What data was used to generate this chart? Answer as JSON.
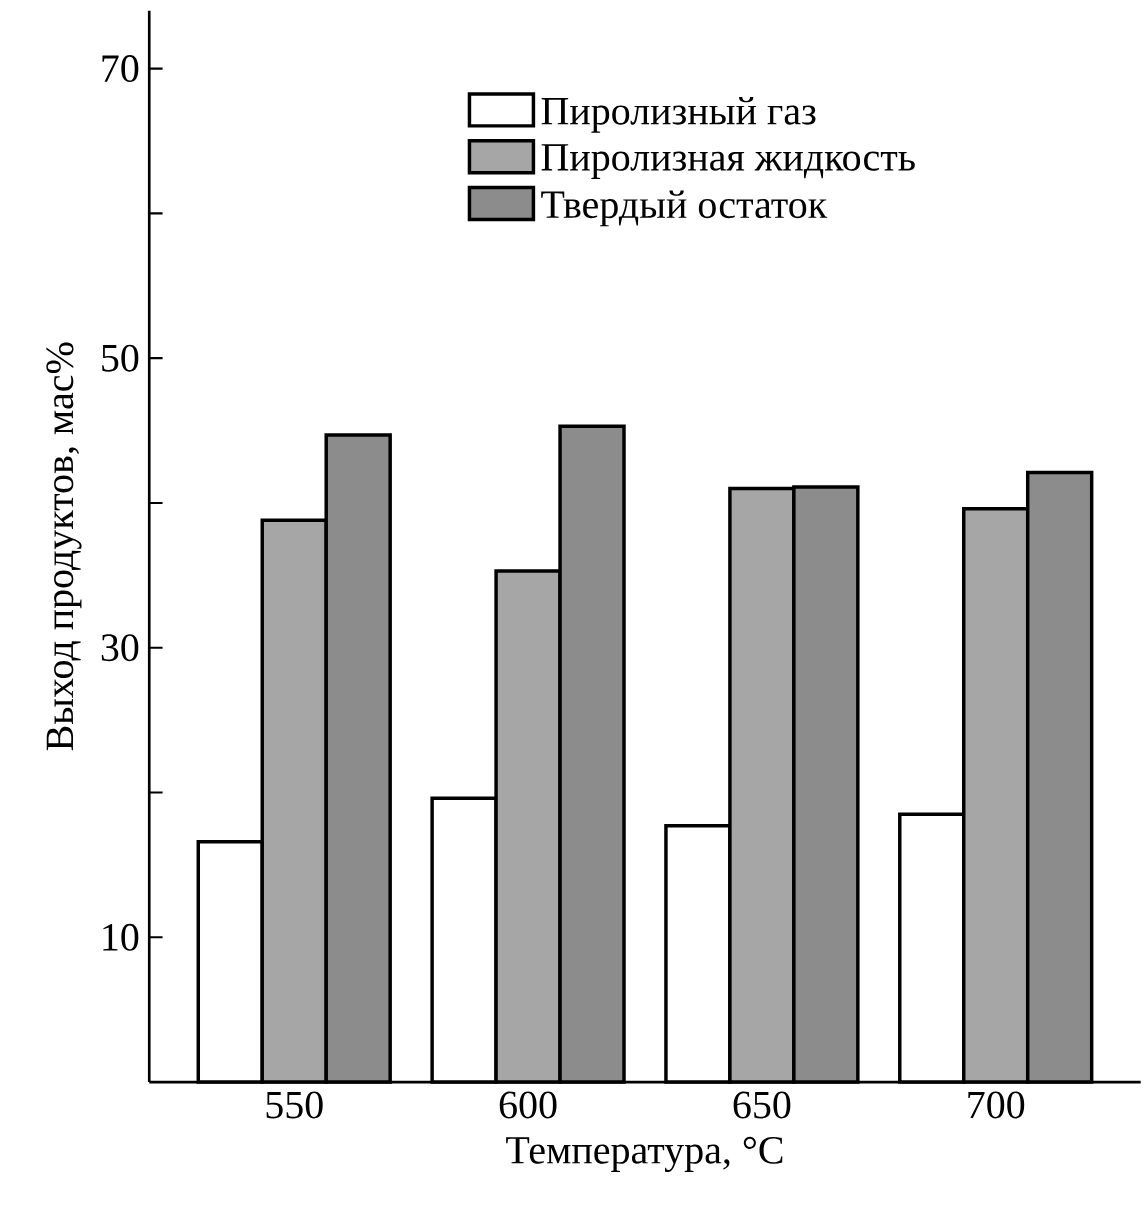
{
  "chart_data": {
    "type": "bar",
    "xlabel": "Температура, °C",
    "ylabel": "Выход продуктов, мас%",
    "categories": [
      "550",
      "600",
      "650",
      "700"
    ],
    "series": [
      {
        "name": "Пиролизный газ",
        "color": "#ffffff",
        "values": [
          16.6,
          19.6,
          17.7,
          18.5
        ]
      },
      {
        "name": "Пиролизная жидкость",
        "color": "#a6a6a6",
        "values": [
          38.8,
          35.3,
          41.0,
          39.6
        ]
      },
      {
        "name": "Твердый остаток",
        "color": "#8c8c8c",
        "values": [
          44.7,
          45.3,
          41.1,
          42.1
        ]
      }
    ],
    "ylim": [
      0,
      74
    ],
    "yticks": [
      10,
      {
        "value": 20,
        "label": null
      },
      30,
      {
        "value": 40,
        "label": null
      },
      50,
      {
        "value": 60,
        "label": null
      },
      70
    ],
    "grid": false,
    "legend": "top"
  }
}
